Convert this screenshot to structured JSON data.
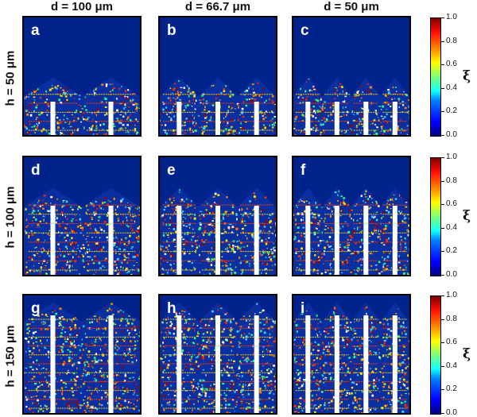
{
  "columns": [
    "d = 100 μm",
    "d = 66.7 μm",
    "d = 50 μm"
  ],
  "rows": [
    "h = 50 μm",
    "h = 100 μm",
    "h = 150 μm"
  ],
  "panels": [
    {
      "label": "a",
      "pillars": 2,
      "height_fraction": 0.45
    },
    {
      "label": "b",
      "pillars": 3,
      "height_fraction": 0.45
    },
    {
      "label": "c",
      "pillars": 4,
      "height_fraction": 0.45
    },
    {
      "label": "d",
      "pillars": 2,
      "height_fraction": 0.7
    },
    {
      "label": "e",
      "pillars": 3,
      "height_fraction": 0.7
    },
    {
      "label": "f",
      "pillars": 4,
      "height_fraction": 0.7
    },
    {
      "label": "g",
      "pillars": 2,
      "height_fraction": 0.9
    },
    {
      "label": "h",
      "pillars": 3,
      "height_fraction": 0.9
    },
    {
      "label": "i",
      "pillars": 4,
      "height_fraction": 0.9
    }
  ],
  "colorbar": {
    "ticks": [
      "1.0",
      "0.8",
      "0.6",
      "0.4",
      "0.2",
      "0.0"
    ],
    "label": "ξ",
    "colormap": "jet"
  }
}
